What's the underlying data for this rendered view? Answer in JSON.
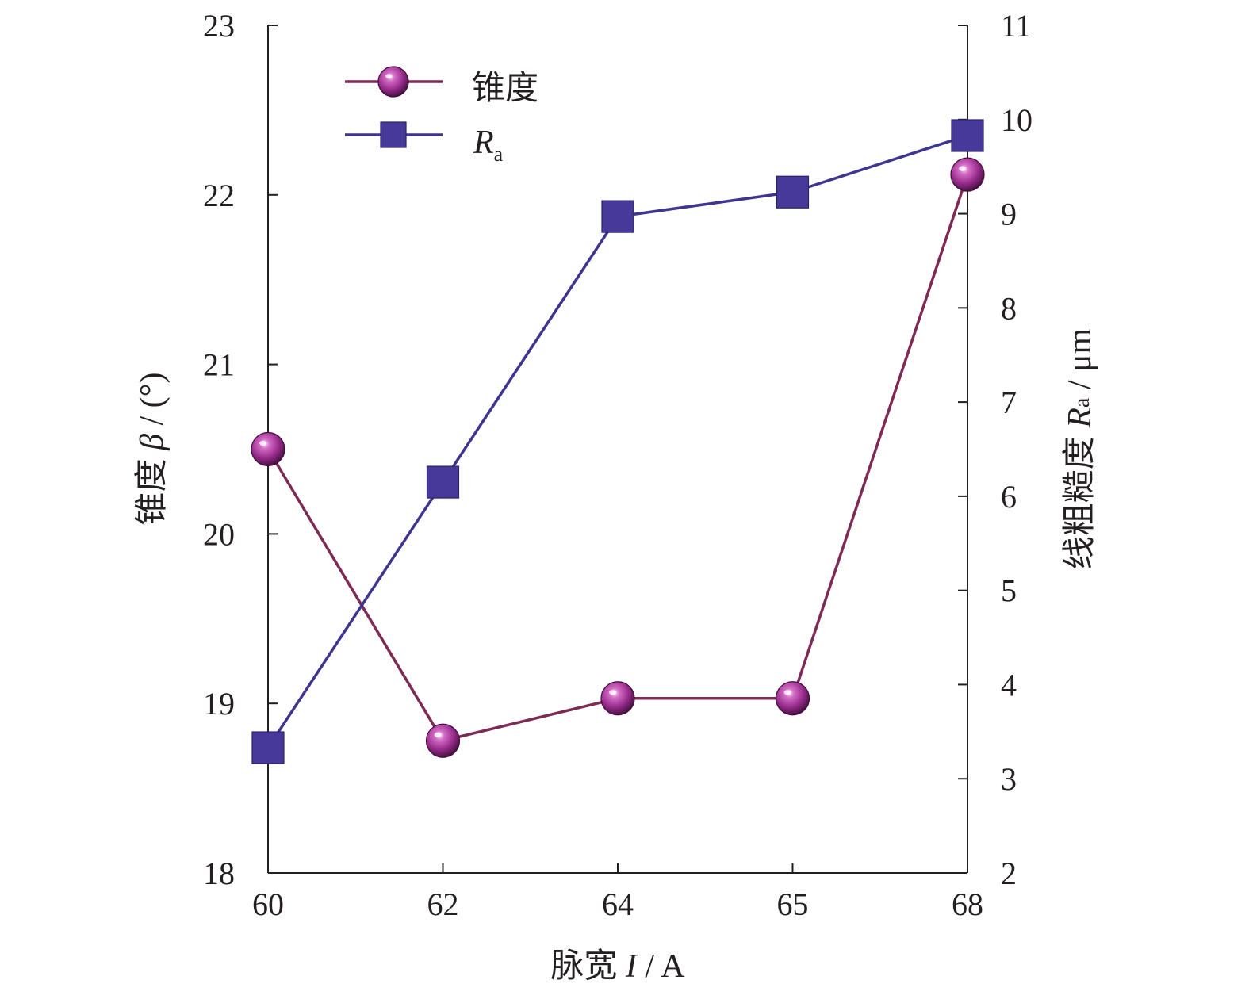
{
  "chart_data": {
    "type": "line",
    "categories": [
      "60",
      "62",
      "64",
      "65",
      "68"
    ],
    "xlabel": {
      "prefix": "脉宽 ",
      "symbol": "I",
      "suffix": " / A"
    },
    "ylabel_left": {
      "prefix": "锥度 ",
      "symbol": "β",
      "suffix": " / (°)"
    },
    "ylabel_right": {
      "prefix": "线粗糙度 ",
      "symbol": "R",
      "subscript": "a",
      "suffix": " / μm"
    },
    "ylim_left": [
      18,
      23
    ],
    "ylim_right": [
      2,
      11
    ],
    "yticks_left": [
      "18",
      "19",
      "20",
      "21",
      "22",
      "23"
    ],
    "yticks_right": [
      "2",
      "3",
      "4",
      "5",
      "6",
      "7",
      "8",
      "9",
      "10",
      "11"
    ],
    "grid": false,
    "legend_position": "top-left",
    "series": [
      {
        "name": "锥度",
        "axis": "left",
        "marker": "sphere",
        "color": "#9b2a8c",
        "line_color": "#7d2a55",
        "values": [
          20.5,
          18.78,
          19.03,
          19.03,
          22.12
        ]
      },
      {
        "name": "R",
        "name_subscript": "a",
        "axis": "right",
        "marker": "square",
        "color": "#46399a",
        "line_color": "#3d3590",
        "values": [
          3.33,
          6.15,
          8.97,
          9.23,
          9.83
        ]
      }
    ]
  }
}
